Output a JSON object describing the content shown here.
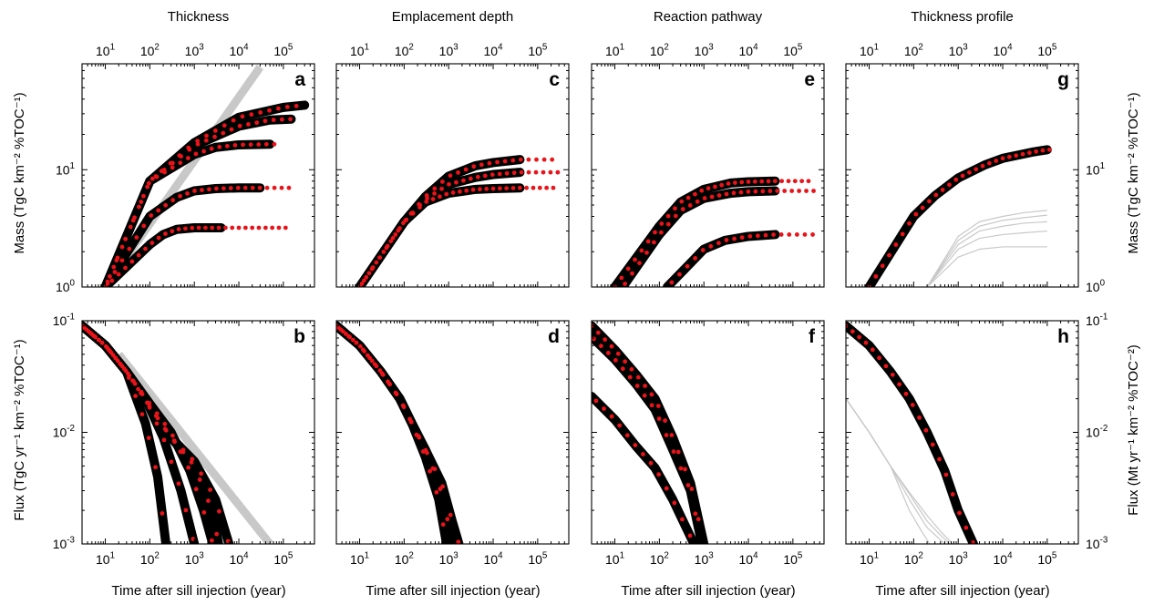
{
  "figure": {
    "shared_xlabel": "Time after sill injection (year)",
    "left_ylabel_top": "Mass (TgC km⁻² %TOC⁻¹)",
    "left_ylabel_bottom": "Flux (TgC yr⁻¹ km⁻² %TOC⁻¹)",
    "right_ylabel_top": "Mass (TgC km⁻² %TOC⁻¹)",
    "right_ylabel_bottom": "Flux (Mt yr⁻¹ km⁻² %TOC⁻²)",
    "colors": {
      "model": "#000000",
      "data_dots": "#e8141a",
      "reference": "#c8c8c8"
    }
  },
  "chart_data": [
    {
      "panel": "a",
      "title": "Thickness",
      "type": "line",
      "xscale": "log",
      "yscale": "log",
      "xlim": [
        3,
        500000
      ],
      "ylim": [
        1,
        80
      ],
      "x_ticks": [
        10,
        100,
        1000,
        10000,
        100000
      ],
      "y_ticks": [
        1,
        10
      ],
      "reference": [
        {
          "x": [
            10,
            30000
          ],
          "y": [
            1,
            75
          ]
        }
      ],
      "series": [
        {
          "x": [
            10,
            100,
            200,
            400,
            1000,
            4000
          ],
          "y": [
            1,
            2.3,
            2.8,
            3.1,
            3.2,
            3.2
          ],
          "dots_x_max": 150000
        },
        {
          "x": [
            10,
            100,
            400,
            1000,
            3000,
            10000,
            30000
          ],
          "y": [
            1,
            4,
            5.8,
            6.6,
            6.9,
            7,
            7
          ],
          "dots_x_max": 150000
        },
        {
          "x": [
            10,
            100,
            1000,
            3000,
            10000,
            50000
          ],
          "y": [
            1,
            8,
            13.5,
            15.5,
            16.3,
            16.5
          ],
          "dots_x_max": 70000
        },
        {
          "x": [
            10,
            100,
            1000,
            10000,
            50000,
            150000
          ],
          "y": [
            1,
            8,
            16,
            23.5,
            26.5,
            27
          ],
          "dots_x_max": 150000
        },
        {
          "x": [
            10,
            100,
            1000,
            10000,
            100000,
            300000
          ],
          "y": [
            1,
            8,
            17,
            28,
            34,
            35.5
          ],
          "dots_x_max": 300000
        }
      ]
    },
    {
      "panel": "b",
      "title": "",
      "type": "line",
      "xscale": "log",
      "yscale": "log",
      "xlim": [
        3,
        500000
      ],
      "ylim": [
        0.001,
        0.1
      ],
      "x_ticks": [
        10,
        100,
        1000,
        10000,
        100000
      ],
      "y_ticks": [
        0.001,
        0.01,
        0.1
      ],
      "reference": [
        {
          "x": [
            20,
            50000
          ],
          "y": [
            0.05,
            0.001
          ]
        }
      ],
      "series": [
        {
          "x": [
            3,
            10,
            30,
            80,
            150,
            230
          ],
          "y": [
            0.09,
            0.06,
            0.035,
            0.012,
            0.004,
            0.001
          ]
        },
        {
          "x": [
            3,
            10,
            30,
            80,
            200,
            500,
            1000
          ],
          "y": [
            0.09,
            0.06,
            0.035,
            0.02,
            0.009,
            0.003,
            0.001
          ]
        },
        {
          "x": [
            3,
            10,
            30,
            100,
            300,
            800,
            1600,
            2600
          ],
          "y": [
            0.09,
            0.06,
            0.035,
            0.018,
            0.01,
            0.0045,
            0.002,
            0.001
          ]
        },
        {
          "x": [
            3,
            10,
            30,
            100,
            300,
            1000,
            2500,
            3500
          ],
          "y": [
            0.09,
            0.06,
            0.035,
            0.017,
            0.009,
            0.005,
            0.002,
            0.001
          ]
        },
        {
          "x": [
            3,
            10,
            30,
            100,
            300,
            1000,
            3000,
            6000
          ],
          "y": [
            0.09,
            0.06,
            0.035,
            0.017,
            0.009,
            0.0055,
            0.0025,
            0.001
          ]
        }
      ]
    },
    {
      "panel": "c",
      "title": "Emplacement depth",
      "type": "line",
      "xscale": "log",
      "yscale": "log",
      "xlim": [
        3,
        500000
      ],
      "ylim": [
        1,
        80
      ],
      "x_ticks": [
        10,
        100,
        1000,
        10000,
        100000
      ],
      "y_ticks": [
        1,
        10
      ],
      "reference": [],
      "series": [
        {
          "x": [
            10,
            100,
            300,
            1000,
            4000,
            10000,
            40000
          ],
          "y": [
            1,
            3.6,
            5.3,
            6.3,
            6.8,
            6.9,
            7
          ],
          "dots_x_max": 300000
        },
        {
          "x": [
            10,
            100,
            300,
            1000,
            4000,
            10000,
            40000
          ],
          "y": [
            1,
            3.6,
            5.6,
            7.5,
            8.6,
            9.1,
            9.5
          ],
          "dots_x_max": 300000
        },
        {
          "x": [
            10,
            100,
            300,
            1000,
            4000,
            10000,
            40000
          ],
          "y": [
            1,
            3.6,
            5.9,
            8.8,
            10.8,
            11.5,
            12.2
          ],
          "dots_x_max": 300000
        }
      ]
    },
    {
      "panel": "d",
      "title": "",
      "type": "line",
      "xscale": "log",
      "yscale": "log",
      "xlim": [
        3,
        500000
      ],
      "ylim": [
        0.001,
        0.1
      ],
      "x_ticks": [
        10,
        100,
        1000,
        10000,
        100000
      ],
      "y_ticks": [
        0.001,
        0.01,
        0.1
      ],
      "reference": [],
      "series": [
        {
          "x": [
            3,
            10,
            30,
            80,
            150,
            300,
            600,
            900
          ],
          "y": [
            0.09,
            0.06,
            0.035,
            0.02,
            0.012,
            0.006,
            0.0025,
            0.001
          ]
        },
        {
          "x": [
            3,
            10,
            30,
            80,
            150,
            300,
            600,
            1000,
            1300
          ],
          "y": [
            0.09,
            0.06,
            0.035,
            0.02,
            0.012,
            0.007,
            0.0035,
            0.0015,
            0.001
          ]
        },
        {
          "x": [
            3,
            10,
            30,
            80,
            150,
            300,
            700,
            1200,
            1700
          ],
          "y": [
            0.09,
            0.06,
            0.035,
            0.02,
            0.012,
            0.007,
            0.0035,
            0.0016,
            0.001
          ]
        }
      ]
    },
    {
      "panel": "e",
      "title": "Reaction pathway",
      "type": "line",
      "xscale": "log",
      "yscale": "log",
      "xlim": [
        3,
        500000
      ],
      "ylim": [
        1,
        80
      ],
      "x_ticks": [
        10,
        100,
        1000,
        10000,
        100000
      ],
      "y_ticks": [
        1,
        10
      ],
      "reference": [],
      "series": [
        {
          "x": [
            10,
            100,
            300,
            1000,
            4000,
            10000,
            40000
          ],
          "y": [
            1,
            3.3,
            5.3,
            6.8,
            7.7,
            7.9,
            8
          ],
          "dots_x_max": 300000
        },
        {
          "x": [
            15,
            100,
            300,
            1000,
            4000,
            10000,
            40000
          ],
          "y": [
            1,
            2.8,
            4.5,
            5.7,
            6.3,
            6.5,
            6.6
          ],
          "dots_x_max": 300000
        },
        {
          "x": [
            150,
            500,
            1000,
            3000,
            10000,
            40000
          ],
          "y": [
            1,
            1.6,
            2.1,
            2.5,
            2.7,
            2.8
          ],
          "dots_x_max": 300000
        }
      ]
    },
    {
      "panel": "f",
      "title": "",
      "type": "line",
      "xscale": "log",
      "yscale": "log",
      "xlim": [
        3,
        500000
      ],
      "ylim": [
        0.001,
        0.1
      ],
      "x_ticks": [
        10,
        100,
        1000,
        10000,
        100000
      ],
      "y_ticks": [
        0.001,
        0.01,
        0.1
      ],
      "reference": [],
      "series": [
        {
          "x": [
            3,
            10,
            30,
            80,
            200,
            500,
            1000
          ],
          "y": [
            0.09,
            0.055,
            0.033,
            0.02,
            0.009,
            0.0035,
            0.001
          ]
        },
        {
          "x": [
            3,
            10,
            30,
            80,
            200,
            500,
            900
          ],
          "y": [
            0.072,
            0.045,
            0.027,
            0.016,
            0.007,
            0.003,
            0.001
          ]
        },
        {
          "x": [
            3,
            10,
            30,
            80,
            200,
            400,
            600
          ],
          "y": [
            0.021,
            0.013,
            0.0075,
            0.0048,
            0.0025,
            0.0014,
            0.001
          ]
        }
      ]
    },
    {
      "panel": "g",
      "title": "Thickness profile",
      "type": "line",
      "xscale": "log",
      "yscale": "log",
      "xlim": [
        3,
        500000
      ],
      "ylim": [
        1,
        80
      ],
      "x_ticks": [
        10,
        100,
        1000,
        10000,
        100000
      ],
      "y_ticks": [
        1,
        10
      ],
      "reference": [
        {
          "x": [
            200,
            1000,
            3000,
            10000,
            30000,
            100000
          ],
          "y": [
            1,
            1.8,
            2.1,
            2.2,
            2.2,
            2.2
          ]
        },
        {
          "x": [
            200,
            1000,
            3000,
            10000,
            30000,
            100000
          ],
          "y": [
            1,
            2.1,
            2.6,
            2.8,
            2.9,
            3
          ]
        },
        {
          "x": [
            200,
            1000,
            3000,
            10000,
            30000,
            100000
          ],
          "y": [
            1,
            2.3,
            3,
            3.3,
            3.5,
            3.6
          ]
        },
        {
          "x": [
            200,
            1000,
            3000,
            10000,
            30000,
            100000
          ],
          "y": [
            1,
            2.5,
            3.3,
            3.7,
            3.9,
            4.1
          ]
        },
        {
          "x": [
            200,
            1000,
            3000,
            10000,
            30000,
            100000
          ],
          "y": [
            1,
            2.7,
            3.6,
            4,
            4.3,
            4.5
          ]
        },
        {
          "x": [
            10,
            100,
            300,
            1000,
            4000,
            10000,
            50000,
            100000
          ],
          "y": [
            1,
            4,
            6,
            8.5,
            11,
            12.5,
            14.2,
            15
          ]
        }
      ],
      "series": [
        {
          "x": [
            10,
            100,
            300,
            1000,
            4000,
            10000,
            50000,
            100000
          ],
          "y": [
            1,
            4,
            6,
            8.5,
            11,
            12.5,
            14.2,
            14.8
          ],
          "dots_x_max": 150000
        }
      ]
    },
    {
      "panel": "h",
      "title": "",
      "type": "line",
      "xscale": "log",
      "yscale": "log",
      "xlim": [
        3,
        500000
      ],
      "ylim": [
        0.001,
        0.1
      ],
      "x_ticks": [
        10,
        100,
        1000,
        10000,
        100000
      ],
      "y_ticks": [
        0.001,
        0.01,
        0.1
      ],
      "reference": [
        {
          "x": [
            3,
            10,
            30,
            80,
            150,
            230
          ],
          "y": [
            0.02,
            0.01,
            0.005,
            0.002,
            0.0013,
            0.001
          ]
        },
        {
          "x": [
            3,
            10,
            30,
            80,
            200,
            500
          ],
          "y": [
            0.02,
            0.01,
            0.005,
            0.0025,
            0.0014,
            0.001
          ]
        },
        {
          "x": [
            3,
            10,
            30,
            80,
            200,
            400,
            650
          ],
          "y": [
            0.02,
            0.01,
            0.005,
            0.0028,
            0.0016,
            0.0012,
            0.001
          ]
        },
        {
          "x": [
            3,
            10,
            30,
            80,
            200,
            400,
            750
          ],
          "y": [
            0.02,
            0.01,
            0.005,
            0.0029,
            0.0018,
            0.0013,
            0.001
          ]
        }
      ],
      "series": [
        {
          "x": [
            3,
            10,
            30,
            80,
            200,
            500,
            1000,
            2200
          ],
          "y": [
            0.09,
            0.06,
            0.035,
            0.02,
            0.01,
            0.0045,
            0.002,
            0.001
          ]
        }
      ]
    }
  ]
}
